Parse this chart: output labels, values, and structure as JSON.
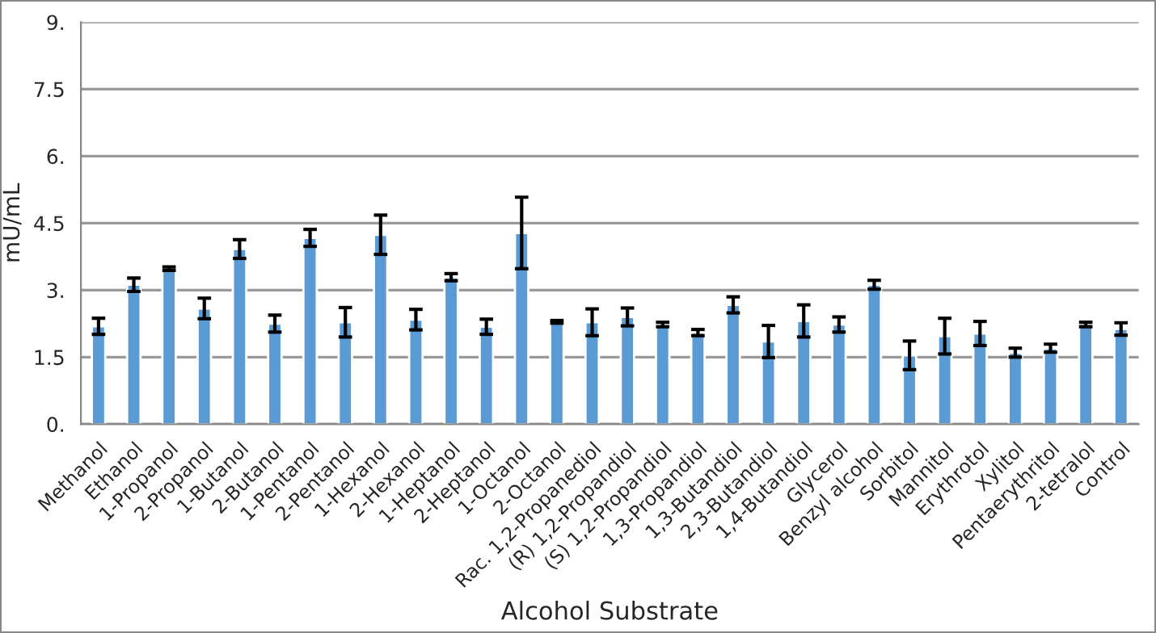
{
  "chart_data": {
    "type": "bar",
    "xlabel": "Alcohol Substrate",
    "ylabel": "mU/mL",
    "categories": [
      "Methanol",
      "Ethanol",
      "1-Propanol",
      "2-Propanol",
      "1-Butanol",
      "2-Butanol",
      "1-Pentanol",
      "2-Pentanol",
      "1-Hexanol",
      "2-Hexanol",
      "1-Heptanol",
      "2-Heptanol",
      "1-Octanol",
      "2-Octanol",
      "Rac. 1,2-Propanediol",
      "(R) 1,2-Propandiol",
      "(S) 1,2-Propandiol",
      "1,3-Propandiol",
      "1,3-Butandiol",
      "2,3-Butandiol",
      "1,4-Butandiol",
      "Glycerol",
      "Benzyl alcohol",
      "Sorbitol",
      "Mannitol",
      "Erythrotol",
      "Xylitol",
      "Pentaerythritol",
      "2-tetralol",
      "Control"
    ],
    "values": [
      2.19,
      3.12,
      3.48,
      2.59,
      3.92,
      2.25,
      4.17,
      2.28,
      4.24,
      2.34,
      3.29,
      2.18,
      4.28,
      2.29,
      2.28,
      2.4,
      2.23,
      2.05,
      2.67,
      1.85,
      2.31,
      2.23,
      3.12,
      1.54,
      1.97,
      2.03,
      1.6,
      1.7,
      2.23,
      2.13
    ],
    "errors": [
      0.18,
      0.15,
      0.04,
      0.23,
      0.21,
      0.19,
      0.19,
      0.33,
      0.44,
      0.23,
      0.08,
      0.17,
      0.8,
      0.03,
      0.3,
      0.2,
      0.05,
      0.07,
      0.18,
      0.36,
      0.36,
      0.17,
      0.1,
      0.32,
      0.4,
      0.27,
      0.1,
      0.09,
      0.05,
      0.14
    ],
    "color": "#5b9bd5",
    "ylim": [
      0,
      9
    ],
    "yticks": [
      {
        "value": 0,
        "label": "0."
      },
      1.5,
      {
        "value": 3,
        "label": "3."
      },
      4.5,
      {
        "value": 6,
        "label": "6."
      },
      7.5,
      {
        "value": 9,
        "label": "9."
      }
    ],
    "grid": "y",
    "legend": false
  }
}
